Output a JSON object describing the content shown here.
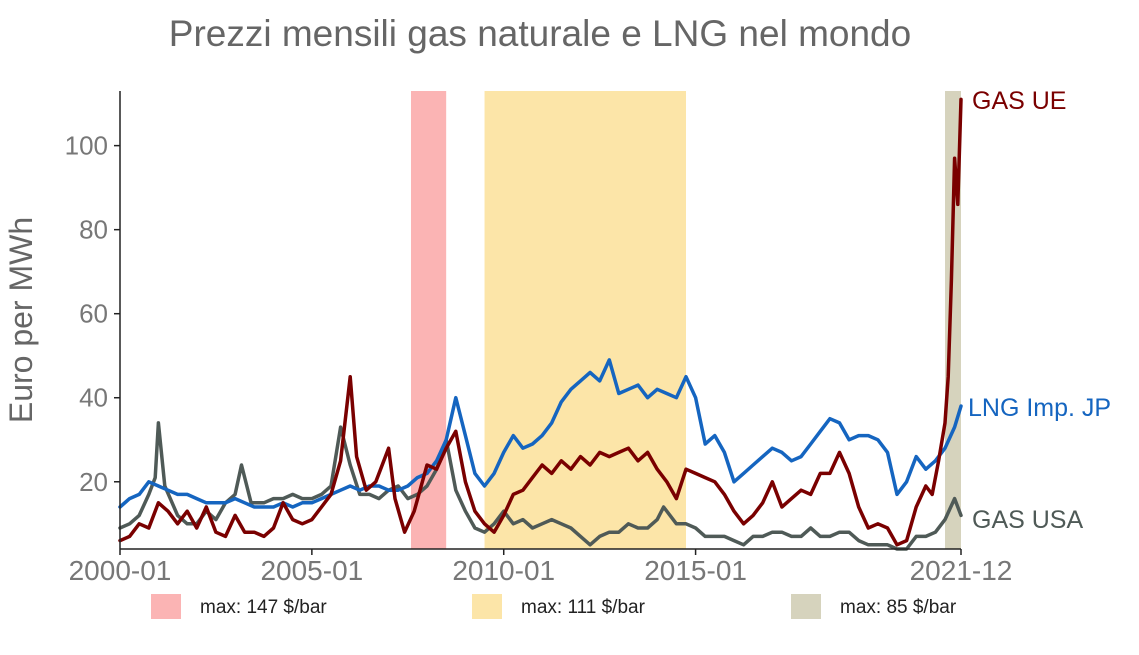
{
  "chart_data": {
    "type": "line",
    "title": "Prezzi mensili gas naturale e LNG nel mondo",
    "ylabel": "Euro per MWh",
    "xlabel": "",
    "x_range": [
      "2000-01",
      "2021-12"
    ],
    "ylim": [
      4,
      113
    ],
    "yticks": [
      20,
      40,
      60,
      80,
      100
    ],
    "xticks": [
      "2000-01",
      "2005-01",
      "2010-01",
      "2015-01",
      "2021-12"
    ],
    "grid": false,
    "shaded_periods": [
      {
        "start": "2007-08",
        "end": "2008-07",
        "color": "#fbb4b4",
        "label": "max: 147 $/bar"
      },
      {
        "start": "2009-07",
        "end": "2014-10",
        "color": "#fce5a8",
        "label": "max: 111 $/bar"
      },
      {
        "start": "2021-07",
        "end": "2021-12",
        "color": "#d6d3bd",
        "label": "max: 85 $/bar"
      }
    ],
    "series": [
      {
        "name": "GAS UE",
        "color": "#7a0000",
        "points": [
          [
            "2000-01",
            6
          ],
          [
            "2000-04",
            7
          ],
          [
            "2000-07",
            10
          ],
          [
            "2000-10",
            9
          ],
          [
            "2001-01",
            15
          ],
          [
            "2001-04",
            13
          ],
          [
            "2001-07",
            10
          ],
          [
            "2001-10",
            13
          ],
          [
            "2002-01",
            9
          ],
          [
            "2002-04",
            14
          ],
          [
            "2002-07",
            8
          ],
          [
            "2002-10",
            7
          ],
          [
            "2003-01",
            12
          ],
          [
            "2003-04",
            8
          ],
          [
            "2003-07",
            8
          ],
          [
            "2003-10",
            7
          ],
          [
            "2004-01",
            9
          ],
          [
            "2004-04",
            15
          ],
          [
            "2004-07",
            11
          ],
          [
            "2004-10",
            10
          ],
          [
            "2005-01",
            11
          ],
          [
            "2005-04",
            14
          ],
          [
            "2005-07",
            17
          ],
          [
            "2005-10",
            25
          ],
          [
            "2006-01",
            45
          ],
          [
            "2006-03",
            26
          ],
          [
            "2006-06",
            18
          ],
          [
            "2006-09",
            20
          ],
          [
            "2007-01",
            28
          ],
          [
            "2007-03",
            16
          ],
          [
            "2007-06",
            8
          ],
          [
            "2007-09",
            13
          ],
          [
            "2008-01",
            24
          ],
          [
            "2008-04",
            23
          ],
          [
            "2008-07",
            28
          ],
          [
            "2008-10",
            32
          ],
          [
            "2009-01",
            20
          ],
          [
            "2009-04",
            13
          ],
          [
            "2009-07",
            10
          ],
          [
            "2009-10",
            8
          ],
          [
            "2010-01",
            12
          ],
          [
            "2010-04",
            17
          ],
          [
            "2010-07",
            18
          ],
          [
            "2010-10",
            21
          ],
          [
            "2011-01",
            24
          ],
          [
            "2011-04",
            22
          ],
          [
            "2011-07",
            25
          ],
          [
            "2011-10",
            23
          ],
          [
            "2012-01",
            26
          ],
          [
            "2012-04",
            24
          ],
          [
            "2012-07",
            27
          ],
          [
            "2012-10",
            26
          ],
          [
            "2013-01",
            27
          ],
          [
            "2013-04",
            28
          ],
          [
            "2013-07",
            25
          ],
          [
            "2013-10",
            27
          ],
          [
            "2014-01",
            23
          ],
          [
            "2014-04",
            20
          ],
          [
            "2014-07",
            16
          ],
          [
            "2014-10",
            23
          ],
          [
            "2015-01",
            22
          ],
          [
            "2015-04",
            21
          ],
          [
            "2015-07",
            20
          ],
          [
            "2015-10",
            17
          ],
          [
            "2016-01",
            13
          ],
          [
            "2016-04",
            10
          ],
          [
            "2016-07",
            12
          ],
          [
            "2016-10",
            15
          ],
          [
            "2017-01",
            20
          ],
          [
            "2017-04",
            14
          ],
          [
            "2017-07",
            16
          ],
          [
            "2017-10",
            18
          ],
          [
            "2018-01",
            17
          ],
          [
            "2018-04",
            22
          ],
          [
            "2018-07",
            22
          ],
          [
            "2018-10",
            27
          ],
          [
            "2019-01",
            22
          ],
          [
            "2019-04",
            14
          ],
          [
            "2019-07",
            9
          ],
          [
            "2019-10",
            10
          ],
          [
            "2020-01",
            9
          ],
          [
            "2020-04",
            5
          ],
          [
            "2020-07",
            6
          ],
          [
            "2020-10",
            14
          ],
          [
            "2021-01",
            19
          ],
          [
            "2021-03",
            17
          ],
          [
            "2021-05",
            25
          ],
          [
            "2021-07",
            34
          ],
          [
            "2021-08",
            45
          ],
          [
            "2021-09",
            68
          ],
          [
            "2021-10",
            97
          ],
          [
            "2021-11",
            86
          ],
          [
            "2021-12",
            111
          ]
        ]
      },
      {
        "name": "LNG Imp. JP",
        "color": "#1565c0",
        "points": [
          [
            "2000-01",
            14
          ],
          [
            "2000-04",
            16
          ],
          [
            "2000-07",
            17
          ],
          [
            "2000-10",
            20
          ],
          [
            "2001-01",
            19
          ],
          [
            "2001-04",
            18
          ],
          [
            "2001-07",
            17
          ],
          [
            "2001-10",
            17
          ],
          [
            "2002-01",
            16
          ],
          [
            "2002-04",
            15
          ],
          [
            "2002-07",
            15
          ],
          [
            "2002-10",
            15
          ],
          [
            "2003-01",
            16
          ],
          [
            "2003-04",
            15
          ],
          [
            "2003-07",
            14
          ],
          [
            "2003-10",
            14
          ],
          [
            "2004-01",
            14
          ],
          [
            "2004-04",
            15
          ],
          [
            "2004-07",
            14
          ],
          [
            "2004-10",
            15
          ],
          [
            "2005-01",
            15
          ],
          [
            "2005-04",
            16
          ],
          [
            "2005-07",
            17
          ],
          [
            "2005-10",
            18
          ],
          [
            "2006-01",
            19
          ],
          [
            "2006-04",
            18
          ],
          [
            "2006-07",
            19
          ],
          [
            "2006-10",
            19
          ],
          [
            "2007-01",
            18
          ],
          [
            "2007-04",
            18
          ],
          [
            "2007-07",
            19
          ],
          [
            "2007-10",
            21
          ],
          [
            "2008-01",
            22
          ],
          [
            "2008-04",
            25
          ],
          [
            "2008-07",
            30
          ],
          [
            "2008-10",
            40
          ],
          [
            "2009-01",
            31
          ],
          [
            "2009-04",
            22
          ],
          [
            "2009-07",
            19
          ],
          [
            "2009-10",
            22
          ],
          [
            "2010-01",
            27
          ],
          [
            "2010-04",
            31
          ],
          [
            "2010-07",
            28
          ],
          [
            "2010-10",
            29
          ],
          [
            "2011-01",
            31
          ],
          [
            "2011-04",
            34
          ],
          [
            "2011-07",
            39
          ],
          [
            "2011-10",
            42
          ],
          [
            "2012-01",
            44
          ],
          [
            "2012-04",
            46
          ],
          [
            "2012-07",
            44
          ],
          [
            "2012-10",
            49
          ],
          [
            "2013-01",
            41
          ],
          [
            "2013-04",
            42
          ],
          [
            "2013-07",
            43
          ],
          [
            "2013-10",
            40
          ],
          [
            "2014-01",
            42
          ],
          [
            "2014-04",
            41
          ],
          [
            "2014-07",
            40
          ],
          [
            "2014-10",
            45
          ],
          [
            "2015-01",
            40
          ],
          [
            "2015-04",
            29
          ],
          [
            "2015-07",
            31
          ],
          [
            "2015-10",
            27
          ],
          [
            "2016-01",
            20
          ],
          [
            "2016-04",
            22
          ],
          [
            "2016-07",
            24
          ],
          [
            "2016-10",
            26
          ],
          [
            "2017-01",
            28
          ],
          [
            "2017-04",
            27
          ],
          [
            "2017-07",
            25
          ],
          [
            "2017-10",
            26
          ],
          [
            "2018-01",
            29
          ],
          [
            "2018-04",
            32
          ],
          [
            "2018-07",
            35
          ],
          [
            "2018-10",
            34
          ],
          [
            "2019-01",
            30
          ],
          [
            "2019-04",
            31
          ],
          [
            "2019-07",
            31
          ],
          [
            "2019-10",
            30
          ],
          [
            "2020-01",
            27
          ],
          [
            "2020-04",
            17
          ],
          [
            "2020-07",
            20
          ],
          [
            "2020-10",
            26
          ],
          [
            "2021-01",
            23
          ],
          [
            "2021-04",
            25
          ],
          [
            "2021-07",
            28
          ],
          [
            "2021-10",
            33
          ],
          [
            "2021-12",
            38
          ]
        ]
      },
      {
        "name": "GAS USA",
        "color": "#4f5a57",
        "points": [
          [
            "2000-01",
            9
          ],
          [
            "2000-04",
            10
          ],
          [
            "2000-07",
            12
          ],
          [
            "2000-10",
            17
          ],
          [
            "2000-12",
            21
          ],
          [
            "2001-01",
            34
          ],
          [
            "2001-03",
            19
          ],
          [
            "2001-07",
            12
          ],
          [
            "2001-10",
            10
          ],
          [
            "2002-01",
            10
          ],
          [
            "2002-04",
            13
          ],
          [
            "2002-07",
            11
          ],
          [
            "2002-10",
            15
          ],
          [
            "2003-01",
            17
          ],
          [
            "2003-03",
            24
          ],
          [
            "2003-06",
            15
          ],
          [
            "2003-10",
            15
          ],
          [
            "2004-01",
            16
          ],
          [
            "2004-04",
            16
          ],
          [
            "2004-07",
            17
          ],
          [
            "2004-10",
            16
          ],
          [
            "2005-01",
            16
          ],
          [
            "2005-04",
            17
          ],
          [
            "2005-07",
            19
          ],
          [
            "2005-10",
            33
          ],
          [
            "2006-01",
            24
          ],
          [
            "2006-04",
            17
          ],
          [
            "2006-07",
            17
          ],
          [
            "2006-10",
            16
          ],
          [
            "2007-01",
            18
          ],
          [
            "2007-04",
            19
          ],
          [
            "2007-07",
            16
          ],
          [
            "2007-10",
            17
          ],
          [
            "2008-01",
            19
          ],
          [
            "2008-04",
            23
          ],
          [
            "2008-07",
            30
          ],
          [
            "2008-10",
            18
          ],
          [
            "2009-01",
            13
          ],
          [
            "2009-04",
            9
          ],
          [
            "2009-07",
            8
          ],
          [
            "2009-10",
            10
          ],
          [
            "2010-01",
            13
          ],
          [
            "2010-04",
            10
          ],
          [
            "2010-07",
            11
          ],
          [
            "2010-10",
            9
          ],
          [
            "2011-01",
            10
          ],
          [
            "2011-04",
            11
          ],
          [
            "2011-07",
            10
          ],
          [
            "2011-10",
            9
          ],
          [
            "2012-01",
            7
          ],
          [
            "2012-04",
            5
          ],
          [
            "2012-07",
            7
          ],
          [
            "2012-10",
            8
          ],
          [
            "2013-01",
            8
          ],
          [
            "2013-04",
            10
          ],
          [
            "2013-07",
            9
          ],
          [
            "2013-10",
            9
          ],
          [
            "2014-01",
            11
          ],
          [
            "2014-03",
            14
          ],
          [
            "2014-07",
            10
          ],
          [
            "2014-10",
            10
          ],
          [
            "2015-01",
            9
          ],
          [
            "2015-04",
            7
          ],
          [
            "2015-07",
            7
          ],
          [
            "2015-10",
            7
          ],
          [
            "2016-01",
            6
          ],
          [
            "2016-04",
            5
          ],
          [
            "2016-07",
            7
          ],
          [
            "2016-10",
            7
          ],
          [
            "2017-01",
            8
          ],
          [
            "2017-04",
            8
          ],
          [
            "2017-07",
            7
          ],
          [
            "2017-10",
            7
          ],
          [
            "2018-01",
            9
          ],
          [
            "2018-04",
            7
          ],
          [
            "2018-07",
            7
          ],
          [
            "2018-10",
            8
          ],
          [
            "2019-01",
            8
          ],
          [
            "2019-04",
            6
          ],
          [
            "2019-07",
            5
          ],
          [
            "2019-10",
            5
          ],
          [
            "2020-01",
            5
          ],
          [
            "2020-04",
            4
          ],
          [
            "2020-07",
            4
          ],
          [
            "2020-10",
            7
          ],
          [
            "2021-01",
            7
          ],
          [
            "2021-04",
            8
          ],
          [
            "2021-07",
            11
          ],
          [
            "2021-10",
            16
          ],
          [
            "2021-12",
            12
          ]
        ]
      }
    ]
  }
}
